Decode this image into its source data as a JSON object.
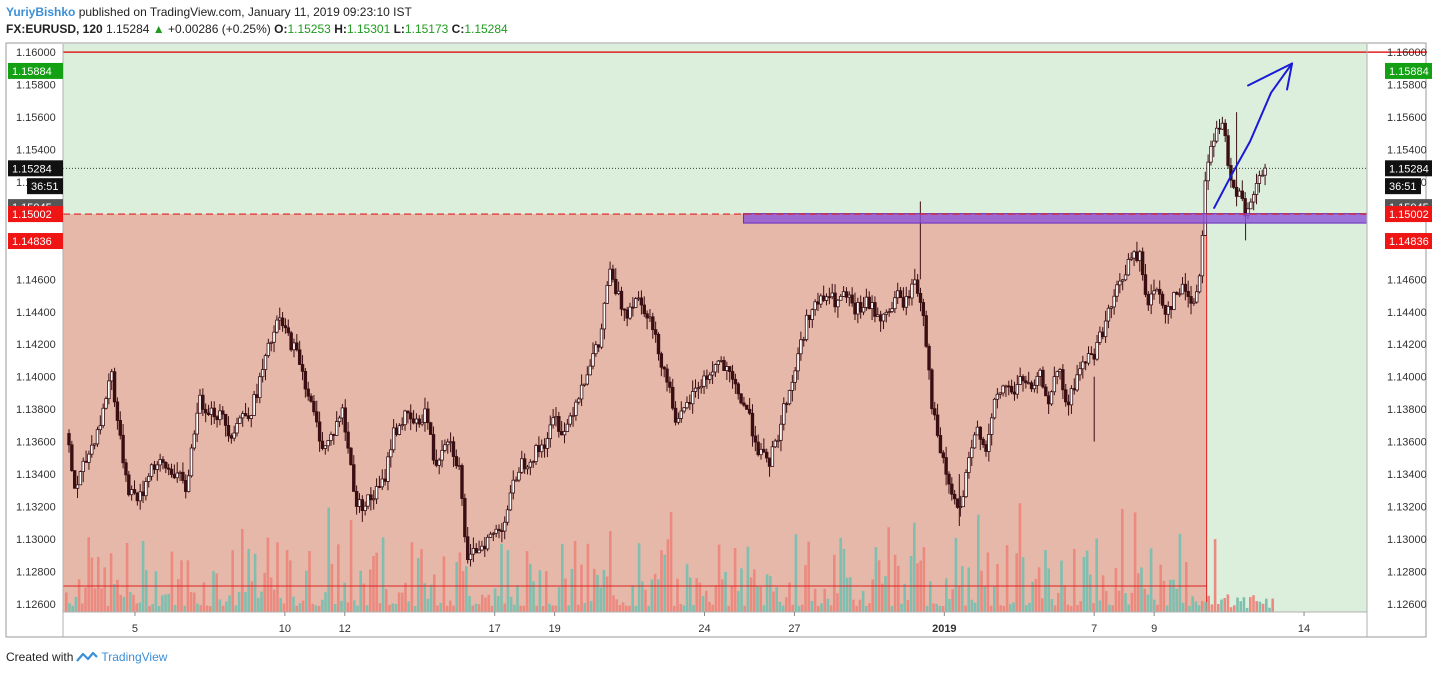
{
  "header": {
    "author": "YuriyBishko",
    "published_text": "published on TradingView.com, January 11, 2019 09:23:10 IST",
    "symbol": "FX:EURUSD, 120",
    "last": "1.15284",
    "change": "+0.00286 (+0.25%)",
    "o_label": "O:",
    "o_value": "1.15253",
    "h_label": "H:",
    "h_value": "1.15301",
    "l_label": "L:",
    "l_value": "1.15173",
    "c_label": "C:",
    "c_value": "1.15284"
  },
  "footer": {
    "created_with": "Created with",
    "brand": "TradingView"
  },
  "colors": {
    "up_bg": "#dcefdc",
    "down_bg": "#e6b8aa",
    "red_line": "#e02020",
    "purple_zone": "#8c55d8",
    "blue_arrow": "#1a1ad8",
    "vol_up": "#7fbfb0",
    "vol_down": "#ec8a80",
    "candle": "#3a0f12",
    "badge_green": "#13a113",
    "badge_red": "#f01515",
    "badge_black": "#111111",
    "badge_gray": "#555555"
  },
  "chart_data": {
    "type": "candlestick",
    "symbol": "EURUSD",
    "ylim": [
      1.1255,
      1.1605
    ],
    "y_ticks": [
      "1.16000",
      "1.15800",
      "1.15600",
      "1.15400",
      "1.15200",
      "1.14600",
      "1.14400",
      "1.14200",
      "1.14000",
      "1.13800",
      "1.13600",
      "1.13400",
      "1.13200",
      "1.13000",
      "1.12800",
      "1.12600"
    ],
    "x_ticks": [
      {
        "label": "5",
        "day": 5
      },
      {
        "label": "10",
        "day": 10
      },
      {
        "label": "12",
        "day": 12
      },
      {
        "label": "17",
        "day": 17
      },
      {
        "label": "19",
        "day": 19
      },
      {
        "label": "24",
        "day": 24
      },
      {
        "label": "27",
        "day": 27
      },
      {
        "label": "2019",
        "day": 32
      },
      {
        "label": "7",
        "day": 37
      },
      {
        "label": "9",
        "day": 39
      },
      {
        "label": "14",
        "day": 44
      }
    ],
    "price_badges": [
      {
        "label": "1.16000",
        "value": 1.16,
        "style": "red-outline"
      },
      {
        "label": "1.15884",
        "value": 1.15884,
        "style": "green"
      },
      {
        "label": "1.15284",
        "value": 1.15284,
        "style": "black"
      },
      {
        "label": "36:51",
        "value": 1.15174,
        "style": "black"
      },
      {
        "label": "1.15045",
        "value": 1.15045,
        "style": "gray"
      },
      {
        "label": "1.15002",
        "value": 1.15002,
        "style": "red"
      },
      {
        "label": "1.14836",
        "value": 1.14836,
        "style": "red"
      }
    ],
    "levels": {
      "top_red_line": 1.16,
      "red_dashed": 1.15002,
      "purple_zone": [
        1.14965,
        1.15005
      ],
      "current_price": 1.15284,
      "bottom_red_line": 1.1271
    },
    "purple_zone_start_day": 25.3,
    "region_split_day": 40.75,
    "arrow": [
      [
        41.0,
        1.1504
      ],
      [
        41.6,
        1.1525
      ],
      [
        42.2,
        1.1545
      ],
      [
        42.9,
        1.1575
      ],
      [
        43.6,
        1.1593
      ]
    ],
    "path_anchors": [
      [
        2.8,
        1.1365
      ],
      [
        3.1,
        1.133
      ],
      [
        3.5,
        1.135
      ],
      [
        4.0,
        1.1375
      ],
      [
        4.3,
        1.1405
      ],
      [
        4.6,
        1.136
      ],
      [
        4.9,
        1.133
      ],
      [
        5.3,
        1.1325
      ],
      [
        5.6,
        1.1345
      ],
      [
        6.0,
        1.1345
      ],
      [
        6.5,
        1.134
      ],
      [
        6.8,
        1.133
      ],
      [
        7.2,
        1.1385
      ],
      [
        7.6,
        1.138
      ],
      [
        8.0,
        1.1375
      ],
      [
        8.3,
        1.1365
      ],
      [
        8.6,
        1.1375
      ],
      [
        9.0,
        1.138
      ],
      [
        9.3,
        1.14
      ],
      [
        9.6,
        1.142
      ],
      [
        9.9,
        1.1435
      ],
      [
        10.2,
        1.1425
      ],
      [
        10.6,
        1.141
      ],
      [
        11.0,
        1.138
      ],
      [
        11.4,
        1.1355
      ],
      [
        11.7,
        1.1365
      ],
      [
        12.0,
        1.138
      ],
      [
        12.3,
        1.1345
      ],
      [
        12.5,
        1.132
      ],
      [
        13.0,
        1.1325
      ],
      [
        13.4,
        1.1335
      ],
      [
        13.7,
        1.1365
      ],
      [
        14.1,
        1.1375
      ],
      [
        14.5,
        1.137
      ],
      [
        14.8,
        1.138
      ],
      [
        15.1,
        1.1345
      ],
      [
        15.5,
        1.1365
      ],
      [
        15.9,
        1.1345
      ],
      [
        16.2,
        1.1283
      ],
      [
        16.5,
        1.1295
      ],
      [
        16.9,
        1.13
      ],
      [
        17.4,
        1.131
      ],
      [
        17.9,
        1.1345
      ],
      [
        18.3,
        1.135
      ],
      [
        18.8,
        1.136
      ],
      [
        19.1,
        1.1375
      ],
      [
        19.4,
        1.1365
      ],
      [
        19.7,
        1.138
      ],
      [
        20.0,
        1.1395
      ],
      [
        20.3,
        1.141
      ],
      [
        20.6,
        1.142
      ],
      [
        20.9,
        1.1465
      ],
      [
        21.1,
        1.1455
      ],
      [
        21.3,
        1.1445
      ],
      [
        21.5,
        1.144
      ],
      [
        21.8,
        1.145
      ],
      [
        22.2,
        1.144
      ],
      [
        22.5,
        1.142
      ],
      [
        22.9,
        1.1395
      ],
      [
        23.2,
        1.137
      ],
      [
        23.6,
        1.1385
      ],
      [
        23.9,
        1.1395
      ],
      [
        24.2,
        1.14
      ],
      [
        24.6,
        1.141
      ],
      [
        24.9,
        1.14
      ],
      [
        25.2,
        1.139
      ],
      [
        25.5,
        1.138
      ],
      [
        25.9,
        1.1355
      ],
      [
        26.2,
        1.1345
      ],
      [
        26.5,
        1.136
      ],
      [
        26.8,
        1.1385
      ],
      [
        27.0,
        1.1395
      ],
      [
        27.3,
        1.142
      ],
      [
        27.6,
        1.144
      ],
      [
        27.9,
        1.1445
      ],
      [
        28.2,
        1.145
      ],
      [
        28.5,
        1.1445
      ],
      [
        28.8,
        1.145
      ],
      [
        29.1,
        1.144
      ],
      [
        29.5,
        1.1445
      ],
      [
        29.8,
        1.144
      ],
      [
        30.1,
        1.1435
      ],
      [
        30.5,
        1.145
      ],
      [
        30.8,
        1.1445
      ],
      [
        31.1,
        1.146
      ],
      [
        31.4,
        1.144
      ],
      [
        31.7,
        1.138
      ],
      [
        32.0,
        1.135
      ],
      [
        32.3,
        1.133
      ],
      [
        32.6,
        1.1315
      ],
      [
        32.9,
        1.1345
      ],
      [
        33.2,
        1.137
      ],
      [
        33.5,
        1.1355
      ],
      [
        33.8,
        1.1385
      ],
      [
        34.1,
        1.1395
      ],
      [
        34.4,
        1.139
      ],
      [
        34.7,
        1.14
      ],
      [
        35.0,
        1.139
      ],
      [
        35.3,
        1.14
      ],
      [
        35.6,
        1.1385
      ],
      [
        35.9,
        1.1405
      ],
      [
        36.2,
        1.138
      ],
      [
        36.5,
        1.14
      ],
      [
        36.8,
        1.141
      ],
      [
        37.1,
        1.1415
      ],
      [
        37.4,
        1.143
      ],
      [
        37.7,
        1.1445
      ],
      [
        38.0,
        1.146
      ],
      [
        38.3,
        1.1472
      ],
      [
        38.6,
        1.1475
      ],
      [
        38.9,
        1.1445
      ],
      [
        39.2,
        1.1455
      ],
      [
        39.5,
        1.144
      ],
      [
        39.8,
        1.145
      ],
      [
        40.1,
        1.1455
      ],
      [
        40.4,
        1.1445
      ],
      [
        40.6,
        1.146
      ],
      [
        40.8,
        1.152
      ],
      [
        41.0,
        1.1545
      ],
      [
        41.2,
        1.155
      ],
      [
        41.4,
        1.1555
      ],
      [
        41.55,
        1.1535
      ],
      [
        41.7,
        1.152
      ],
      [
        41.85,
        1.1515
      ],
      [
        42.0,
        1.151
      ],
      [
        42.15,
        1.1495
      ],
      [
        42.3,
        1.1505
      ],
      [
        42.45,
        1.1515
      ],
      [
        42.6,
        1.152
      ],
      [
        42.75,
        1.1528
      ]
    ]
  }
}
